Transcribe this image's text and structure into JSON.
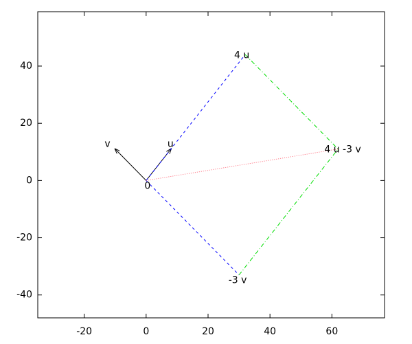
{
  "chart_data": {
    "type": "vector",
    "xlim": [
      -35,
      77
    ],
    "ylim": [
      -48,
      59
    ],
    "xticks": [
      -20,
      0,
      20,
      40,
      60
    ],
    "yticks": [
      -40,
      -20,
      0,
      20,
      40
    ],
    "series": [
      {
        "color": "#000000",
        "dash": "solid",
        "arrow": true,
        "x": [
          0,
          8
        ],
        "y": [
          0,
          11
        ]
      },
      {
        "color": "#000000",
        "dash": "solid",
        "arrow": true,
        "x": [
          0,
          -10
        ],
        "y": [
          0,
          11
        ]
      },
      {
        "color": "#0000ff",
        "dash": "dashed",
        "arrow": false,
        "x": [
          0,
          32
        ],
        "y": [
          0,
          44
        ]
      },
      {
        "color": "#0000ff",
        "dash": "dashed",
        "arrow": false,
        "x": [
          0,
          30
        ],
        "y": [
          0,
          -33
        ]
      },
      {
        "color": "#00dd00",
        "dash": "dashdot",
        "arrow": false,
        "x": [
          32,
          62
        ],
        "y": [
          44,
          11
        ]
      },
      {
        "color": "#00dd00",
        "dash": "dashdot",
        "arrow": false,
        "x": [
          30,
          62
        ],
        "y": [
          -33,
          11
        ]
      },
      {
        "color": "#ff6070",
        "dash": "dotted",
        "arrow": false,
        "x": [
          0,
          62
        ],
        "y": [
          0,
          11
        ]
      }
    ],
    "labels": [
      {
        "text": "0",
        "x": 0,
        "y": 0
      },
      {
        "text": "u",
        "x": 8,
        "y": 11
      },
      {
        "text": "v",
        "x": -10,
        "y": 11
      },
      {
        "text": "4 u",
        "x": 32,
        "y": 44
      },
      {
        "text": "-3 v",
        "x": 30,
        "y": -33
      },
      {
        "text": "4 u -3 v",
        "x": 62,
        "y": 11
      }
    ]
  }
}
